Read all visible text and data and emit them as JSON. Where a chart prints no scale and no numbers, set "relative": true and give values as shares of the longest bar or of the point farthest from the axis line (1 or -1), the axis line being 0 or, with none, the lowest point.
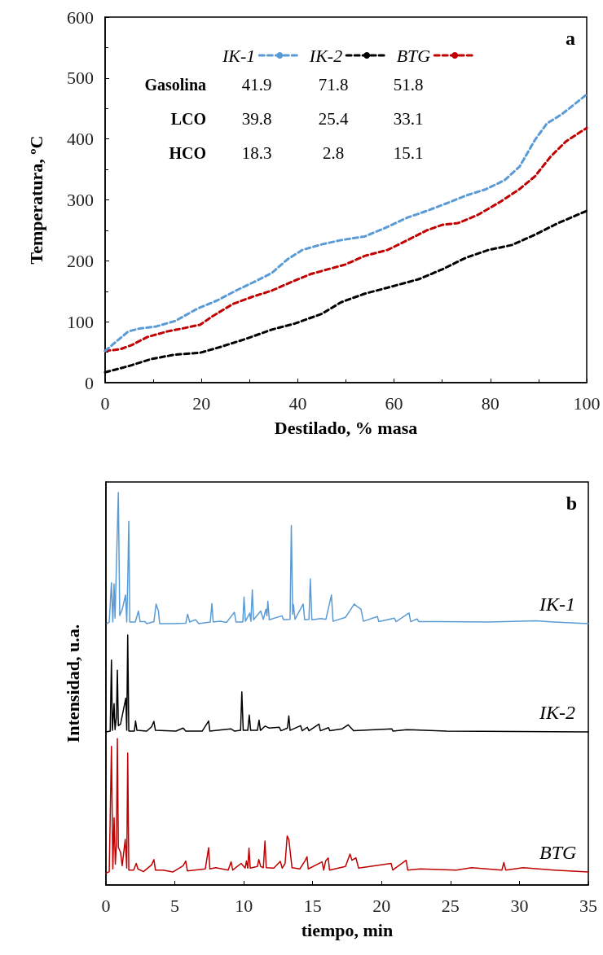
{
  "chart_data": [
    {
      "type": "line",
      "xlabel": "Destilado, % masa",
      "ylabel": "Temperatura, ºC",
      "xlim": [
        0,
        100
      ],
      "xticks": [
        0,
        20,
        40,
        60,
        80,
        100
      ],
      "ylim": [
        0,
        600
      ],
      "yticks": [
        0,
        100,
        200,
        300,
        400,
        500,
        600
      ],
      "grid": false,
      "legend": "top",
      "marker": "none",
      "line_style": "dashed",
      "annotations": [
        "a",
        "Gasolina",
        "41.9",
        "71.8",
        "51.8",
        "LCO",
        "39.8",
        "25.4",
        "33.1",
        "HCO",
        "18.3",
        "2.8",
        "15.1"
      ],
      "series": [
        {
          "name": "IK-1",
          "color": "#5b9bd5",
          "x": [
            0,
            2.4,
            4.8,
            7.2,
            10.5,
            14.5,
            19.3,
            23.3,
            27.4,
            31.4,
            34.6,
            37.8,
            41,
            45,
            49,
            53.9,
            57.9,
            62.8,
            66.8,
            70.8,
            74.9,
            78.9,
            82.9,
            86.1,
            89.3,
            91.7,
            94.9,
            100
          ],
          "values": [
            52,
            68,
            84,
            89,
            92,
            101,
            122,
            135,
            152,
            167,
            180,
            202,
            218,
            227,
            234,
            240,
            253,
            271,
            282,
            294,
            307,
            317,
            332,
            355,
            399,
            425,
            441,
            473
          ]
        },
        {
          "name": "IK-2",
          "color": "#000000",
          "x": [
            0,
            4.8,
            9.7,
            14.5,
            19.7,
            24.1,
            28.9,
            34.6,
            39.4,
            45,
            49,
            53.9,
            58.7,
            65.2,
            70,
            74.9,
            79.7,
            84.5,
            89.3,
            94.1,
            100
          ],
          "values": [
            17,
            27,
            39,
            46,
            49,
            59,
            71,
            87,
            97,
            113,
            132,
            146,
            156,
            170,
            186,
            205,
            218,
            226,
            243,
            262,
            282
          ]
        },
        {
          "name": "BTG",
          "color": "#c00000",
          "x": [
            0,
            3.2,
            5.6,
            8.8,
            12.9,
            16.1,
            19.7,
            22.5,
            26.5,
            30.6,
            34.6,
            38.6,
            42.6,
            46.7,
            49.9,
            53.9,
            58.7,
            62.8,
            66.8,
            70,
            73.3,
            77.3,
            82.1,
            86.1,
            89.3,
            92.5,
            95.7,
            100
          ],
          "values": [
            52,
            55,
            62,
            75,
            84,
            89,
            95,
            110,
            129,
            141,
            151,
            165,
            178,
            187,
            194,
            208,
            218,
            234,
            250,
            259,
            262,
            275,
            297,
            318,
            339,
            371,
            396,
            418
          ]
        }
      ]
    },
    {
      "type": "line",
      "relative": true,
      "xlabel": "tiempo, min",
      "ylabel": "Intensidad, u.a.",
      "xlim": [
        0,
        35
      ],
      "xticks": [
        0,
        5,
        10,
        15,
        20,
        25,
        30,
        35
      ],
      "tick_labels": "x",
      "grid": false,
      "marker": "none",
      "line_style": "solid",
      "annotations": [
        "b"
      ],
      "series": [
        {
          "name": "IK-1",
          "color": "#5b9bd5",
          "x": [
            0.07,
            0.24,
            0.4,
            0.5,
            0.59,
            0.66,
            0.78,
            0.9,
            1.0,
            1.18,
            1.42,
            1.51,
            1.58,
            1.66,
            1.73,
            2.13,
            2.36,
            2.48,
            2.84,
            2.96,
            3.48,
            3.64,
            3.81,
            3.9,
            4.85,
            5.79,
            5.93,
            6.08,
            6.5,
            6.74,
            7.57,
            7.69,
            7.78,
            8.28,
            8.75,
            9.32,
            9.44,
            9.93,
            10.02,
            10.12,
            10.43,
            10.52,
            10.62,
            10.71,
            11.23,
            11.42,
            11.61,
            11.68,
            11.75,
            11.85,
            12.77,
            12.89,
            13.36,
            13.45,
            13.55,
            13.6,
            13.72,
            14.31,
            14.42,
            14.73,
            14.83,
            14.94,
            15.6,
            15.96,
            16.36,
            16.48,
            17.38,
            18.02,
            18.21,
            18.5,
            18.68,
            19.7,
            19.8,
            20.93,
            21.05,
            21.99,
            22.11,
            22.58,
            22.7,
            24.24,
            27.78,
            31.2,
            32.5,
            35
          ],
          "values": [
            0.666,
            0.67,
            0.77,
            0.67,
            0.767,
            0.68,
            0.84,
            1.0,
            0.687,
            0.702,
            0.739,
            0.67,
            0.77,
            0.927,
            0.67,
            0.67,
            0.698,
            0.671,
            0.671,
            0.666,
            0.671,
            0.716,
            0.698,
            0.666,
            0.666,
            0.667,
            0.69,
            0.67,
            0.676,
            0.666,
            0.67,
            0.717,
            0.67,
            0.672,
            0.669,
            0.695,
            0.67,
            0.67,
            0.734,
            0.672,
            0.693,
            0.672,
            0.752,
            0.676,
            0.698,
            0.677,
            0.703,
            0.686,
            0.723,
            0.676,
            0.686,
            0.676,
            0.677,
            0.916,
            0.69,
            0.715,
            0.677,
            0.716,
            0.676,
            0.677,
            0.78,
            0.676,
            0.679,
            0.677,
            0.739,
            0.672,
            0.682,
            0.716,
            0.71,
            0.703,
            0.672,
            0.684,
            0.671,
            0.68,
            0.671,
            0.693,
            0.671,
            0.678,
            0.671,
            0.671,
            0.67,
            0.673,
            0.67,
            0.666
          ]
        },
        {
          "name": "IK-2",
          "color": "#000000",
          "x": [
            0,
            0.31,
            0.4,
            0.47,
            0.59,
            0.66,
            0.76,
            0.83,
            0.9,
            1.06,
            1.44,
            1.51,
            1.58,
            1.66,
            2.06,
            2.15,
            2.25,
            2.96,
            3.31,
            3.48,
            3.59,
            5.08,
            5.6,
            5.79,
            6.98,
            7.45,
            7.54,
            9.06,
            9.34,
            9.77,
            9.86,
            9.96,
            10.29,
            10.4,
            10.5,
            10.99,
            11.11,
            11.21,
            11.56,
            11.82,
            12.58,
            12.7,
            13.17,
            13.27,
            13.36,
            14.12,
            14.24,
            14.61,
            14.73,
            15.46,
            15.56,
            16.15,
            16.25,
            17.14,
            17.57,
            17.97,
            20.74,
            20.83,
            21.83,
            24.71,
            35
          ],
          "values": [
            0.39,
            0.392,
            0.573,
            0.394,
            0.462,
            0.396,
            0.427,
            0.547,
            0.406,
            0.41,
            0.476,
            0.394,
            0.637,
            0.392,
            0.392,
            0.418,
            0.394,
            0.392,
            0.403,
            0.417,
            0.394,
            0.392,
            0.4,
            0.392,
            0.392,
            0.418,
            0.392,
            0.398,
            0.392,
            0.394,
            0.492,
            0.394,
            0.394,
            0.433,
            0.394,
            0.394,
            0.42,
            0.394,
            0.405,
            0.4,
            0.402,
            0.393,
            0.4,
            0.431,
            0.394,
            0.406,
            0.393,
            0.402,
            0.393,
            0.41,
            0.393,
            0.401,
            0.393,
            0.398,
            0.408,
            0.393,
            0.398,
            0.392,
            0.396,
            0.392,
            0.39
          ]
        },
        {
          "name": "BTG",
          "color": "#c00000",
          "x": [
            0,
            0.24,
            0.4,
            0.5,
            0.59,
            0.68,
            0.76,
            0.83,
            0.9,
            1.06,
            1.18,
            1.4,
            1.51,
            1.58,
            1.66,
            2.01,
            2.2,
            2.32,
            2.72,
            3.31,
            3.48,
            3.59,
            4.14,
            4.85,
            5.6,
            5.79,
            5.91,
            7.21,
            7.45,
            7.54,
            7.97,
            8.87,
            9.08,
            9.2,
            9.81,
            10.1,
            10.19,
            10.29,
            10.38,
            10.47,
            10.99,
            11.09,
            11.23,
            11.42,
            11.54,
            11.63,
            12.18,
            12.65,
            12.79,
            13.0,
            13.15,
            13.27,
            13.38,
            13.5,
            14.07,
            14.45,
            14.59,
            14.68,
            15.68,
            15.8,
            15.94,
            16.13,
            16.22,
            17.38,
            17.71,
            17.85,
            18.14,
            18.33,
            20.69,
            20.81,
            21.78,
            21.9,
            22.82,
            25.42,
            26.53,
            28.73,
            28.87,
            29.01,
            30.27,
            32.51,
            35
          ],
          "values": [
            0.03,
            0.034,
            0.353,
            0.041,
            0.171,
            0.053,
            0.104,
            0.373,
            0.096,
            0.083,
            0.049,
            0.116,
            0.043,
            0.336,
            0.038,
            0.038,
            0.055,
            0.041,
            0.034,
            0.051,
            0.065,
            0.038,
            0.038,
            0.033,
            0.049,
            0.061,
            0.036,
            0.041,
            0.095,
            0.041,
            0.044,
            0.038,
            0.059,
            0.038,
            0.055,
            0.043,
            0.061,
            0.043,
            0.094,
            0.043,
            0.047,
            0.065,
            0.047,
            0.044,
            0.112,
            0.044,
            0.043,
            0.06,
            0.043,
            0.055,
            0.125,
            0.116,
            0.082,
            0.044,
            0.041,
            0.062,
            0.072,
            0.041,
            0.059,
            0.038,
            0.061,
            0.069,
            0.038,
            0.047,
            0.079,
            0.063,
            0.069,
            0.043,
            0.055,
            0.038,
            0.063,
            0.038,
            0.041,
            0.038,
            0.044,
            0.038,
            0.057,
            0.038,
            0.044,
            0.038,
            0.033
          ]
        }
      ]
    }
  ]
}
